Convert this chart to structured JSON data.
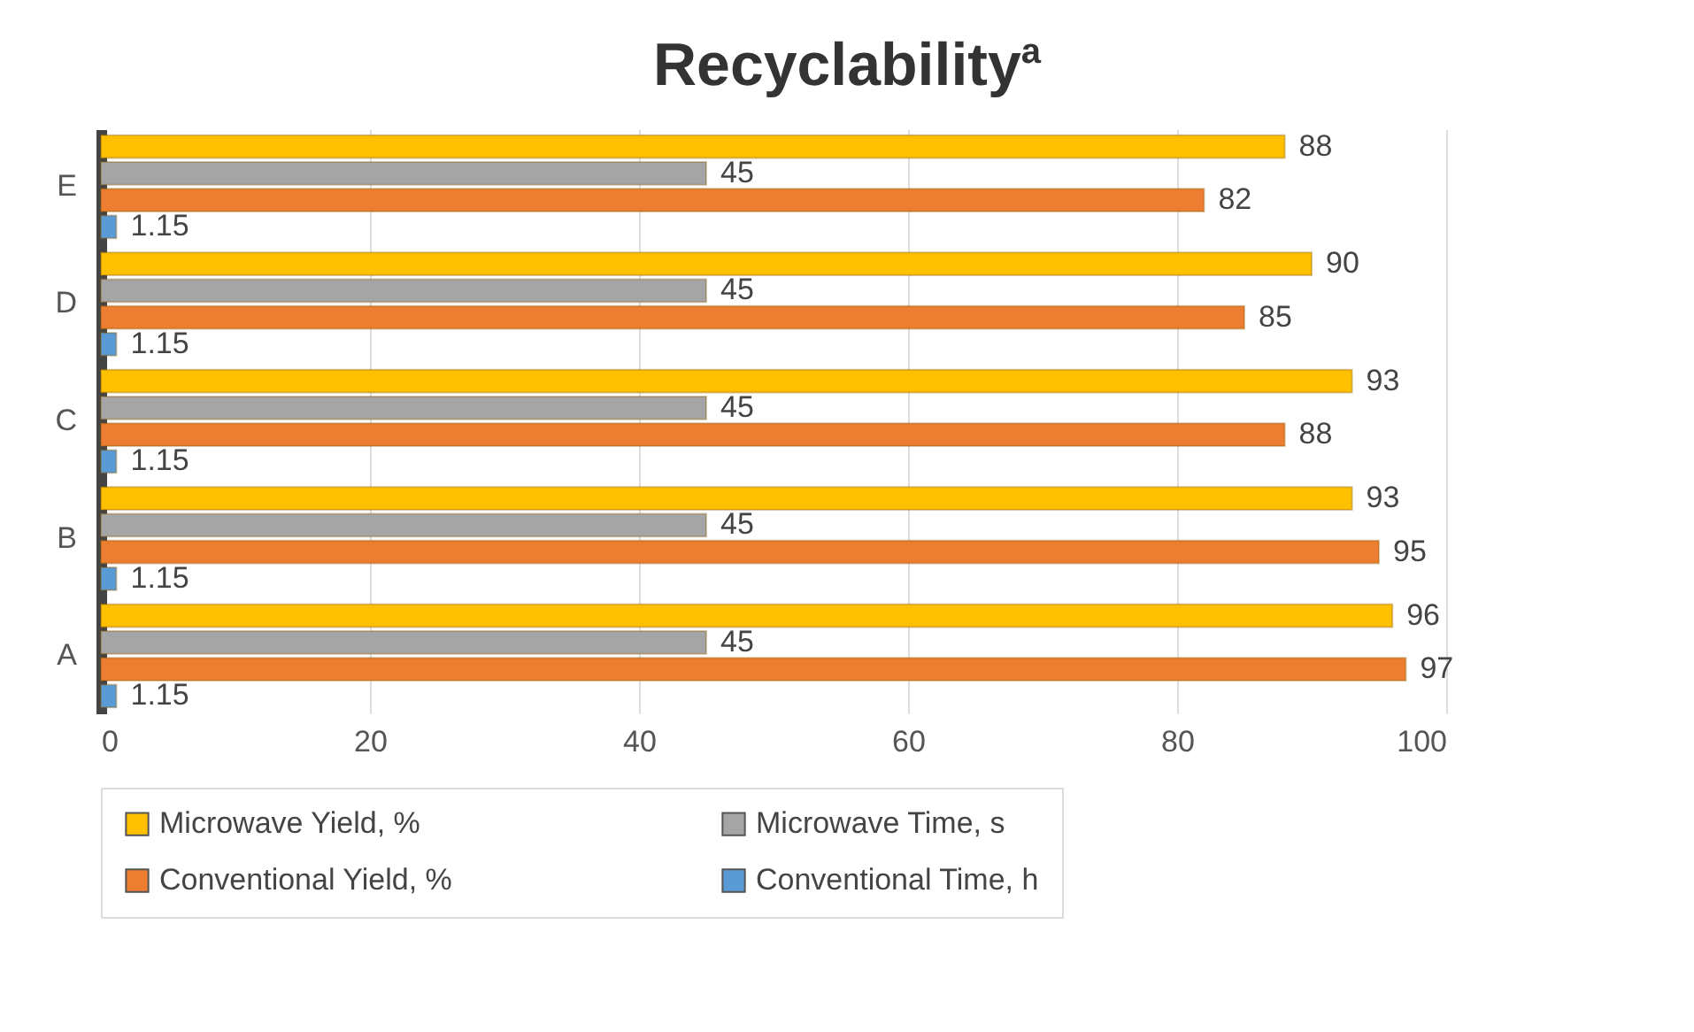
{
  "chart_data": {
    "type": "bar",
    "orientation": "horizontal",
    "title": "Recyclability$^{a}$",
    "categories": [
      "E",
      "D",
      "C",
      "B",
      "A"
    ],
    "series": [
      {
        "name": "Microwave Yield, %",
        "color": "#ffc000",
        "values": [
          88,
          90,
          93,
          93,
          96
        ]
      },
      {
        "name": "Microwave Time, s",
        "color": "#a5a5a5",
        "values": [
          45,
          45,
          45,
          45,
          45
        ]
      },
      {
        "name": "Conventional Yield, %",
        "color": "#ed7d31",
        "values": [
          82,
          85,
          88,
          95,
          97
        ]
      },
      {
        "name": "Conventional Time, h",
        "color": "#5b9bd5",
        "values": [
          1.15,
          1.15,
          1.15,
          1.15,
          1.15
        ]
      }
    ],
    "xlim": [
      0,
      100
    ],
    "xticks": [
      0,
      20,
      40,
      60,
      80,
      100
    ],
    "grid": "x",
    "legend": "bottom",
    "data_labels": true
  }
}
